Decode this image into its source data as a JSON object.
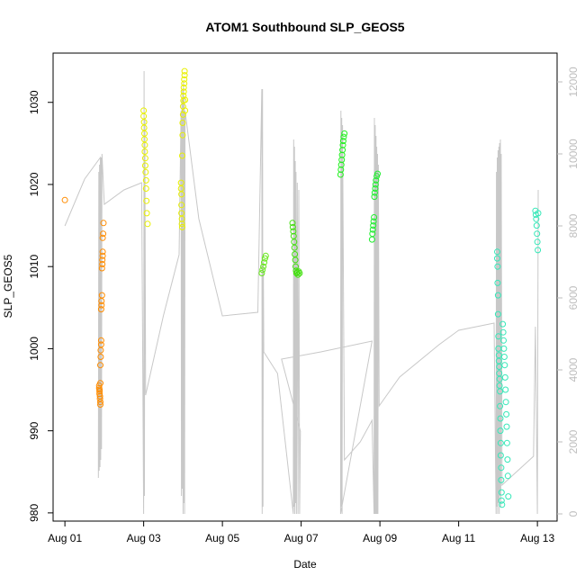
{
  "chart_data": {
    "type": "scatter",
    "title": "ATOM1 Southbound SLP_GEOS5",
    "xlabel": "Date",
    "ylabel": "SLP_GEOS5",
    "x_unit": "days",
    "xlim": [
      -0.3,
      12.5
    ],
    "ylim": [
      979,
      1036
    ],
    "x_ticks": [
      {
        "value": 0,
        "label": "Aug 01"
      },
      {
        "value": 2,
        "label": "Aug 03"
      },
      {
        "value": 4,
        "label": "Aug 05"
      },
      {
        "value": 6,
        "label": "Aug 07"
      },
      {
        "value": 8,
        "label": "Aug 09"
      },
      {
        "value": 10,
        "label": "Aug 11"
      },
      {
        "value": 12,
        "label": "Aug 13"
      }
    ],
    "y_ticks": [
      980,
      990,
      1000,
      1010,
      1020,
      1030
    ],
    "y2_ticks": [
      0,
      2000,
      4000,
      6000,
      8000,
      10000,
      12000
    ],
    "y2lim": [
      -200,
      12800
    ],
    "grid": false,
    "series": [
      {
        "type": "scatter",
        "color": "#ff8c00",
        "points": [
          [
            0.0,
            1018.1
          ],
          [
            0.87,
            995.5
          ],
          [
            0.87,
            995.2
          ],
          [
            0.88,
            995.0
          ],
          [
            0.88,
            994.8
          ],
          [
            0.88,
            994.5
          ],
          [
            0.89,
            994.2
          ],
          [
            0.89,
            993.9
          ],
          [
            0.9,
            993.5
          ],
          [
            0.9,
            993.2
          ],
          [
            0.9,
            995.8
          ],
          [
            0.9,
            998.0
          ],
          [
            0.91,
            999.0
          ],
          [
            0.91,
            999.8
          ],
          [
            0.92,
            1000.5
          ],
          [
            0.92,
            1001.0
          ],
          [
            0.92,
            1004.8
          ],
          [
            0.93,
            1005.3
          ],
          [
            0.93,
            1005.8
          ],
          [
            0.94,
            1006.5
          ],
          [
            0.94,
            1009.8
          ],
          [
            0.95,
            1010.3
          ],
          [
            0.95,
            1010.8
          ],
          [
            0.96,
            1011.3
          ],
          [
            0.96,
            1011.8
          ],
          [
            0.96,
            1013.5
          ],
          [
            0.97,
            1014.0
          ],
          [
            0.98,
            1015.3
          ]
        ]
      },
      {
        "type": "scatter",
        "color": "#e8f000",
        "points": [
          [
            2.0,
            1029.0
          ],
          [
            2.0,
            1028.3
          ],
          [
            2.01,
            1027.6
          ],
          [
            2.01,
            1026.9
          ],
          [
            2.02,
            1026.2
          ],
          [
            2.02,
            1025.5
          ],
          [
            2.03,
            1024.8
          ],
          [
            2.03,
            1024.0
          ],
          [
            2.04,
            1023.2
          ],
          [
            2.04,
            1022.3
          ],
          [
            2.05,
            1021.5
          ],
          [
            2.06,
            1020.5
          ],
          [
            2.06,
            1019.5
          ],
          [
            2.07,
            1018.0
          ],
          [
            2.08,
            1016.5
          ],
          [
            2.1,
            1015.2
          ],
          [
            2.95,
            1020.2
          ],
          [
            2.95,
            1019.5
          ],
          [
            2.96,
            1018.8
          ],
          [
            2.96,
            1017.5
          ],
          [
            2.96,
            1016.5
          ],
          [
            2.97,
            1015.8
          ],
          [
            2.97,
            1015.2
          ],
          [
            2.98,
            1014.8
          ],
          [
            2.98,
            1023.5
          ],
          [
            2.99,
            1026.0
          ],
          [
            2.99,
            1027.5
          ],
          [
            3.0,
            1028.5
          ],
          [
            3.0,
            1029.5
          ],
          [
            3.01,
            1030.2
          ],
          [
            3.01,
            1030.8
          ],
          [
            3.02,
            1031.3
          ],
          [
            3.02,
            1031.8
          ],
          [
            3.03,
            1032.3
          ],
          [
            3.03,
            1032.8
          ],
          [
            3.04,
            1033.3
          ],
          [
            3.04,
            1033.8
          ],
          [
            3.05,
            1029.0
          ],
          [
            3.05,
            1030.3
          ]
        ]
      },
      {
        "type": "scatter",
        "color": "#66e81a",
        "points": [
          [
            5.0,
            1009.2
          ],
          [
            5.02,
            1009.6
          ],
          [
            5.04,
            1010.0
          ],
          [
            5.06,
            1010.5
          ],
          [
            5.08,
            1011.0
          ],
          [
            5.1,
            1011.3
          ]
        ]
      },
      {
        "type": "scatter",
        "color": "#44e010",
        "points": [
          [
            5.78,
            1015.3
          ],
          [
            5.79,
            1014.8
          ],
          [
            5.8,
            1014.3
          ],
          [
            5.81,
            1013.7
          ],
          [
            5.82,
            1013.0
          ],
          [
            5.83,
            1012.3
          ],
          [
            5.84,
            1011.5
          ],
          [
            5.85,
            1010.8
          ],
          [
            5.86,
            1010.0
          ],
          [
            5.87,
            1009.5
          ],
          [
            5.88,
            1009.2
          ],
          [
            5.9,
            1009.3
          ],
          [
            5.92,
            1009.0
          ],
          [
            5.94,
            1009.4
          ],
          [
            5.96,
            1009.2
          ]
        ]
      },
      {
        "type": "scatter",
        "color": "#22f020",
        "points": [
          [
            7.0,
            1021.2
          ],
          [
            7.01,
            1021.8
          ],
          [
            7.02,
            1022.4
          ],
          [
            7.03,
            1023.0
          ],
          [
            7.04,
            1023.6
          ],
          [
            7.05,
            1024.2
          ],
          [
            7.06,
            1024.8
          ],
          [
            7.07,
            1025.3
          ],
          [
            7.08,
            1025.8
          ],
          [
            7.1,
            1026.2
          ]
        ]
      },
      {
        "type": "scatter",
        "color": "#20ee30",
        "points": [
          [
            7.8,
            1013.3
          ],
          [
            7.81,
            1014.0
          ],
          [
            7.82,
            1014.5
          ],
          [
            7.83,
            1015.0
          ],
          [
            7.84,
            1015.5
          ],
          [
            7.85,
            1016.0
          ],
          [
            7.86,
            1018.5
          ],
          [
            7.87,
            1019.0
          ],
          [
            7.88,
            1019.5
          ],
          [
            7.89,
            1020.0
          ],
          [
            7.9,
            1020.5
          ],
          [
            7.92,
            1021.0
          ],
          [
            7.94,
            1021.3
          ]
        ]
      },
      {
        "type": "scatter",
        "color": "#35e8b8",
        "points": [
          [
            10.98,
            1011.8
          ],
          [
            10.98,
            1011.0
          ],
          [
            10.99,
            1010.0
          ],
          [
            10.99,
            1008.0
          ],
          [
            11.0,
            1006.5
          ],
          [
            11.0,
            1004.2
          ],
          [
            11.01,
            1001.5
          ],
          [
            11.01,
            1000.0
          ],
          [
            11.02,
            999.2
          ],
          [
            11.02,
            998.5
          ],
          [
            11.03,
            997.8
          ],
          [
            11.03,
            997.0
          ],
          [
            11.04,
            996.3
          ],
          [
            11.04,
            995.5
          ],
          [
            11.05,
            994.8
          ],
          [
            11.05,
            993.0
          ],
          [
            11.06,
            991.5
          ],
          [
            11.06,
            990.0
          ],
          [
            11.07,
            988.5
          ],
          [
            11.07,
            987.0
          ],
          [
            11.08,
            985.5
          ],
          [
            11.08,
            984.0
          ],
          [
            11.09,
            982.5
          ],
          [
            11.09,
            981.5
          ],
          [
            11.1,
            981.0
          ],
          [
            11.12,
            1003.0
          ],
          [
            11.13,
            1002.0
          ],
          [
            11.14,
            1001.0
          ],
          [
            11.15,
            1000.0
          ],
          [
            11.16,
            999.0
          ],
          [
            11.17,
            998.0
          ],
          [
            11.18,
            996.5
          ],
          [
            11.19,
            995.0
          ],
          [
            11.2,
            993.5
          ],
          [
            11.21,
            992.0
          ],
          [
            11.22,
            990.5
          ],
          [
            11.23,
            988.5
          ],
          [
            11.24,
            986.5
          ],
          [
            11.25,
            984.5
          ],
          [
            11.26,
            982.0
          ],
          [
            11.95,
            1016.8
          ],
          [
            11.96,
            1016.3
          ],
          [
            11.97,
            1015.8
          ],
          [
            11.98,
            1015.0
          ],
          [
            11.99,
            1014.0
          ],
          [
            12.0,
            1013.0
          ],
          [
            12.01,
            1012.0
          ],
          [
            12.02,
            1016.5
          ]
        ]
      }
    ],
    "altitude_trace": {
      "axis": "right",
      "color": "#c8c8c8",
      "points": [
        [
          0.0,
          8000
        ],
        [
          0.5,
          9300
        ],
        [
          0.9,
          9900
        ],
        [
          0.85,
          1000
        ],
        [
          0.86,
          9500
        ],
        [
          0.87,
          1200
        ],
        [
          0.88,
          9700
        ],
        [
          0.89,
          1300
        ],
        [
          0.9,
          9800
        ],
        [
          0.91,
          1500
        ],
        [
          0.92,
          9900
        ],
        [
          0.93,
          1800
        ],
        [
          0.94,
          10000
        ],
        [
          1.0,
          8600
        ],
        [
          1.5,
          9000
        ],
        [
          1.95,
          9200
        ],
        [
          2.0,
          0
        ],
        [
          2.01,
          12300
        ],
        [
          2.02,
          500
        ],
        [
          2.03,
          11000
        ],
        [
          2.05,
          3300
        ],
        [
          2.5,
          5500
        ],
        [
          2.9,
          7200
        ],
        [
          2.95,
          11200
        ],
        [
          2.96,
          500
        ],
        [
          2.97,
          11500
        ],
        [
          2.98,
          700
        ],
        [
          2.99,
          11800
        ],
        [
          3.0,
          0
        ],
        [
          3.01,
          12000
        ],
        [
          3.02,
          300
        ],
        [
          3.03,
          11600
        ],
        [
          3.04,
          0
        ],
        [
          3.05,
          11200
        ],
        [
          3.4,
          8200
        ],
        [
          4.0,
          5500
        ],
        [
          4.9,
          5600
        ],
        [
          5.0,
          11800
        ],
        [
          5.01,
          0
        ],
        [
          5.02,
          11800
        ],
        [
          5.03,
          200
        ],
        [
          5.04,
          7000
        ],
        [
          5.05,
          4500
        ],
        [
          5.4,
          3900
        ],
        [
          5.8,
          0
        ],
        [
          5.81,
          10400
        ],
        [
          5.82,
          200
        ],
        [
          5.83,
          10200
        ],
        [
          5.84,
          0
        ],
        [
          5.85,
          9800
        ],
        [
          5.86,
          300
        ],
        [
          5.87,
          9500
        ],
        [
          5.88,
          0
        ],
        [
          5.9,
          9200
        ],
        [
          5.92,
          0
        ],
        [
          5.94,
          9000
        ],
        [
          5.96,
          0
        ],
        [
          5.98,
          2300
        ],
        [
          5.5,
          4300
        ],
        [
          6.5,
          4500
        ],
        [
          7.8,
          4800
        ],
        [
          7.0,
          0
        ],
        [
          7.01,
          11200
        ],
        [
          7.02,
          200
        ],
        [
          7.03,
          11000
        ],
        [
          7.04,
          0
        ],
        [
          7.05,
          10800
        ],
        [
          7.1,
          1500
        ],
        [
          7.5,
          2000
        ],
        [
          7.8,
          2600
        ],
        [
          7.85,
          0
        ],
        [
          7.86,
          11000
        ],
        [
          7.87,
          0
        ],
        [
          7.88,
          10800
        ],
        [
          7.89,
          0
        ],
        [
          7.9,
          10500
        ],
        [
          7.91,
          0
        ],
        [
          7.92,
          10200
        ],
        [
          7.93,
          0
        ],
        [
          7.94,
          10000
        ],
        [
          7.95,
          0
        ],
        [
          7.96,
          9700
        ],
        [
          7.98,
          3000
        ],
        [
          8.5,
          3800
        ],
        [
          9.5,
          4700
        ],
        [
          10.0,
          5100
        ],
        [
          10.9,
          5300
        ],
        [
          10.95,
          0
        ],
        [
          10.96,
          9500
        ],
        [
          10.97,
          200
        ],
        [
          10.98,
          9900
        ],
        [
          10.99,
          0
        ],
        [
          11.0,
          10100
        ],
        [
          11.01,
          300
        ],
        [
          11.02,
          10200
        ],
        [
          11.03,
          0
        ],
        [
          11.04,
          10300
        ],
        [
          11.05,
          500
        ],
        [
          11.06,
          10400
        ],
        [
          11.07,
          200
        ],
        [
          11.08,
          10000
        ],
        [
          11.1,
          800
        ],
        [
          11.5,
          1200
        ],
        [
          11.9,
          1600
        ],
        [
          11.95,
          5200
        ],
        [
          12.0,
          0
        ],
        [
          12.02,
          9000
        ]
      ]
    }
  }
}
